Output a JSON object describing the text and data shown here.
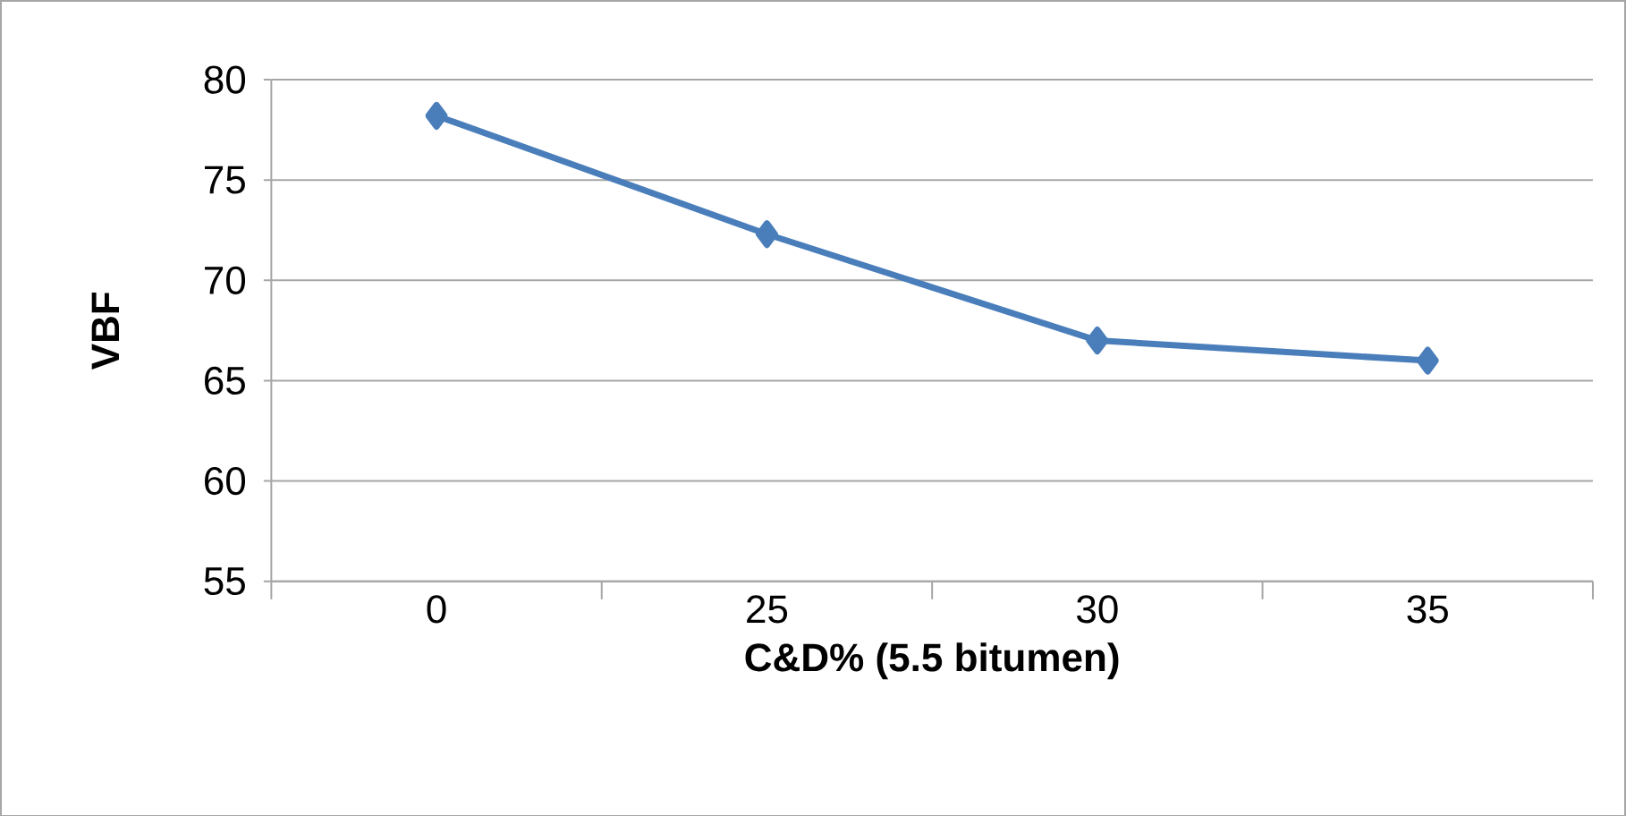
{
  "chart_data": {
    "type": "line",
    "xlabel": "C&D% (5.5 bitumen)",
    "ylabel": "VBF",
    "categories": [
      "0",
      "25",
      "30",
      "35"
    ],
    "series": [
      {
        "color": "#4a7ebb",
        "values": [
          78.2,
          72.3,
          67.0,
          66.0
        ]
      }
    ],
    "ylim": [
      55,
      80
    ],
    "yticks": [
      55,
      60,
      65,
      70,
      75,
      80
    ],
    "grid": "y",
    "marker": "diamond",
    "line_style": "solid"
  }
}
